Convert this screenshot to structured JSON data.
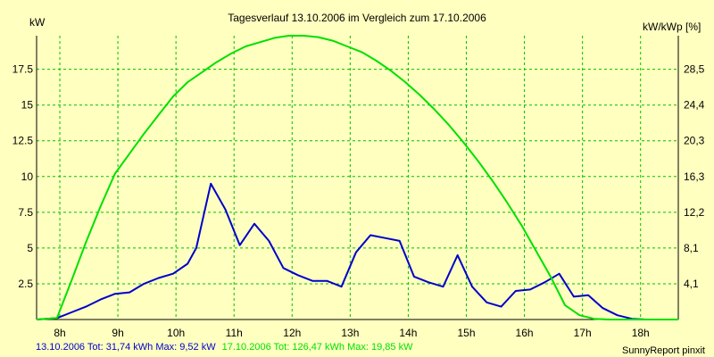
{
  "chart_data": {
    "type": "line",
    "title": "Tagesverlauf 13.10.2006 im Vergleich zum 17.10.2006",
    "ylabel_left": "kW",
    "ylabel_right": "kW/kWp [%]",
    "x_ticks": [
      "8h",
      "9h",
      "10h",
      "11h",
      "12h",
      "13h",
      "14h",
      "15h",
      "16h",
      "17h",
      "18h"
    ],
    "x_tick_values": [
      8,
      9,
      10,
      11,
      12,
      13,
      14,
      15,
      16,
      17,
      18
    ],
    "xlim": [
      7.6,
      18.65
    ],
    "ylim": [
      0,
      19.85
    ],
    "y_ticks_left": [
      "2.5",
      "5",
      "7.5",
      "10",
      "12.5",
      "15",
      "17.5"
    ],
    "y_tick_values_left": [
      2.5,
      5,
      7.5,
      10,
      12.5,
      15,
      17.5
    ],
    "y_ticks_right": [
      "4,1",
      "8,1",
      "12,2",
      "16,3",
      "20,3",
      "24,4",
      "28,5"
    ],
    "grid": true,
    "series": [
      {
        "color": "#0000cc",
        "x": [
          7.6,
          7.95,
          8.2,
          8.45,
          8.7,
          8.95,
          9.2,
          9.45,
          9.7,
          9.95,
          10.2,
          10.35,
          10.6,
          10.85,
          11.1,
          11.35,
          11.6,
          11.85,
          12.1,
          12.35,
          12.6,
          12.85,
          13.1,
          13.35,
          13.6,
          13.85,
          14.1,
          14.35,
          14.6,
          14.85,
          15.1,
          15.35,
          15.6,
          15.85,
          16.1,
          16.35,
          16.6,
          16.85,
          17.1,
          17.35,
          17.6,
          17.85,
          18.1,
          18.35,
          18.65
        ],
        "y": [
          0,
          0.1,
          0.5,
          0.9,
          1.4,
          1.8,
          1.9,
          2.5,
          2.9,
          3.2,
          3.9,
          5.0,
          9.5,
          7.7,
          5.2,
          6.7,
          5.5,
          3.6,
          3.1,
          2.7,
          2.7,
          2.3,
          4.7,
          5.9,
          5.7,
          5.5,
          3.0,
          2.6,
          2.3,
          4.5,
          2.3,
          1.2,
          0.9,
          2.0,
          2.1,
          2.6,
          3.2,
          1.6,
          1.7,
          0.8,
          0.3,
          0.05,
          0,
          0,
          0
        ]
      },
      {
        "color": "#00e000",
        "x": [
          7.6,
          7.95,
          8.2,
          8.45,
          8.7,
          8.95,
          9.2,
          9.45,
          9.7,
          9.95,
          10.2,
          10.45,
          10.7,
          10.95,
          11.2,
          11.45,
          11.7,
          11.95,
          12.2,
          12.45,
          12.7,
          12.95,
          13.2,
          13.45,
          13.7,
          13.95,
          14.2,
          14.45,
          14.7,
          14.95,
          15.2,
          15.45,
          15.7,
          15.95,
          16.2,
          16.45,
          16.7,
          16.95,
          17.2,
          17.45,
          17.7,
          17.95,
          18.2,
          18.45,
          18.65
        ],
        "y": [
          0,
          0.1,
          2.7,
          5.4,
          7.9,
          10.2,
          11.6,
          13.0,
          14.3,
          15.6,
          16.6,
          17.3,
          18.0,
          18.6,
          19.1,
          19.4,
          19.7,
          19.85,
          19.85,
          19.75,
          19.5,
          19.1,
          18.7,
          18.1,
          17.4,
          16.6,
          15.7,
          14.7,
          13.6,
          12.4,
          11.1,
          9.7,
          8.2,
          6.6,
          4.8,
          3.0,
          1.0,
          0.3,
          0.05,
          0,
          0,
          0,
          0,
          0,
          0
        ]
      }
    ],
    "legend_text": [
      "13.10.2006 Tot: 31,74 kWh Max: 9,52 kW",
      "17.10.2006 Tot: 126,47 kWh Max: 19,85 kW"
    ],
    "footer_right": "SunnyReport pinxit"
  },
  "colors": {
    "background": "#ffffc0",
    "grid": "#00c000",
    "series1": "#0000cc",
    "series2": "#00e000"
  }
}
